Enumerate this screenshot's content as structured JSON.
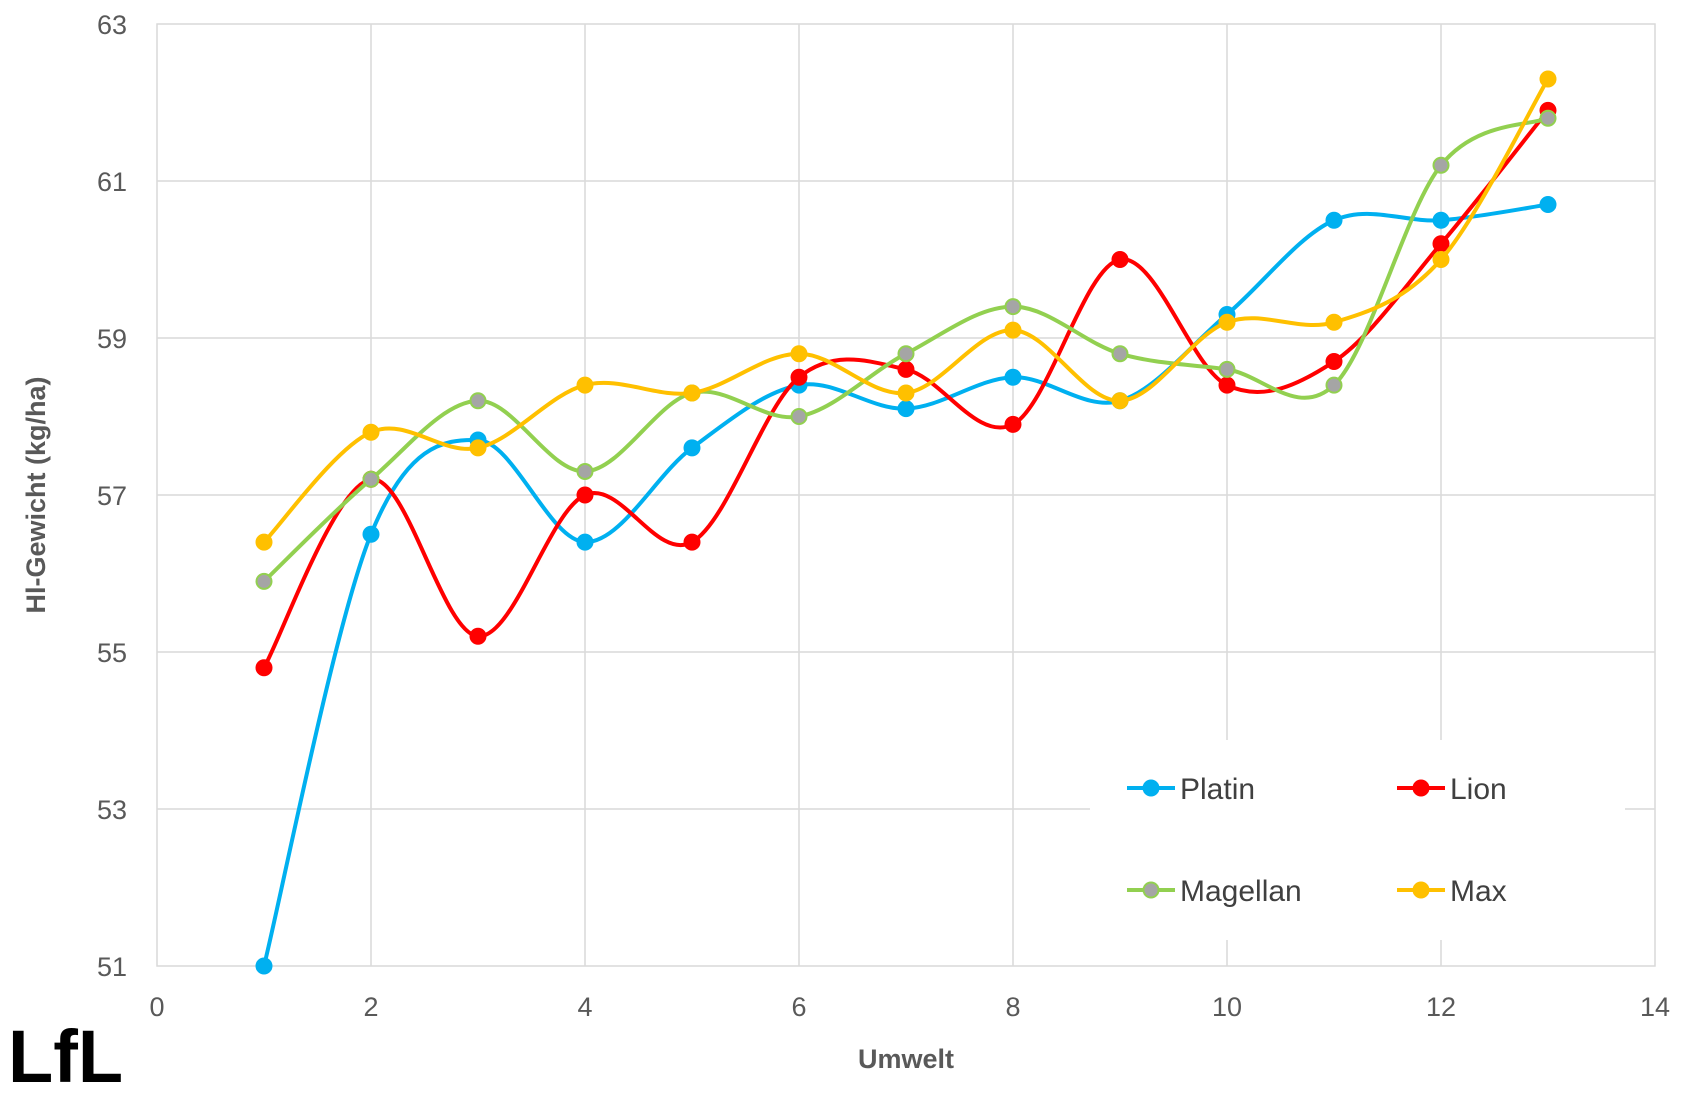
{
  "logo_text": "LfL",
  "chart_data": {
    "type": "line",
    "smooth": true,
    "xlabel": "Umwelt",
    "ylabel": "Hl-Gewicht (kg/ha)",
    "xlim": [
      0,
      14
    ],
    "ylim": [
      51,
      63
    ],
    "xticks": [
      0,
      2,
      4,
      6,
      8,
      10,
      12,
      14
    ],
    "yticks": [
      51,
      53,
      55,
      57,
      59,
      61,
      63
    ],
    "grid": true,
    "legend": "bottom-right",
    "x": [
      1,
      2,
      3,
      4,
      5,
      6,
      7,
      8,
      9,
      10,
      11,
      12,
      13
    ],
    "series": [
      {
        "name": "Platin",
        "color": "#00b0f0",
        "marker_color": "#00b0f0",
        "values": [
          51.0,
          56.5,
          57.7,
          56.4,
          57.6,
          58.4,
          58.1,
          58.5,
          58.2,
          59.3,
          60.5,
          60.5,
          60.7
        ]
      },
      {
        "name": "Lion",
        "color": "#ff0000",
        "marker_color": "#ff0000",
        "values": [
          54.8,
          57.2,
          55.2,
          57.0,
          56.4,
          58.5,
          58.6,
          57.9,
          60.0,
          58.4,
          58.7,
          60.2,
          61.9
        ]
      },
      {
        "name": "Magellan",
        "color": "#92d050",
        "marker_color": "#a5a5a5",
        "values": [
          55.9,
          57.2,
          58.2,
          57.3,
          58.3,
          58.0,
          58.8,
          59.4,
          58.8,
          58.6,
          58.4,
          61.2,
          61.8
        ]
      },
      {
        "name": "Max",
        "color": "#ffc000",
        "marker_color": "#ffc000",
        "values": [
          56.4,
          57.8,
          57.6,
          58.4,
          58.3,
          58.8,
          58.3,
          59.1,
          58.2,
          59.2,
          59.2,
          60.0,
          62.3
        ]
      }
    ]
  }
}
